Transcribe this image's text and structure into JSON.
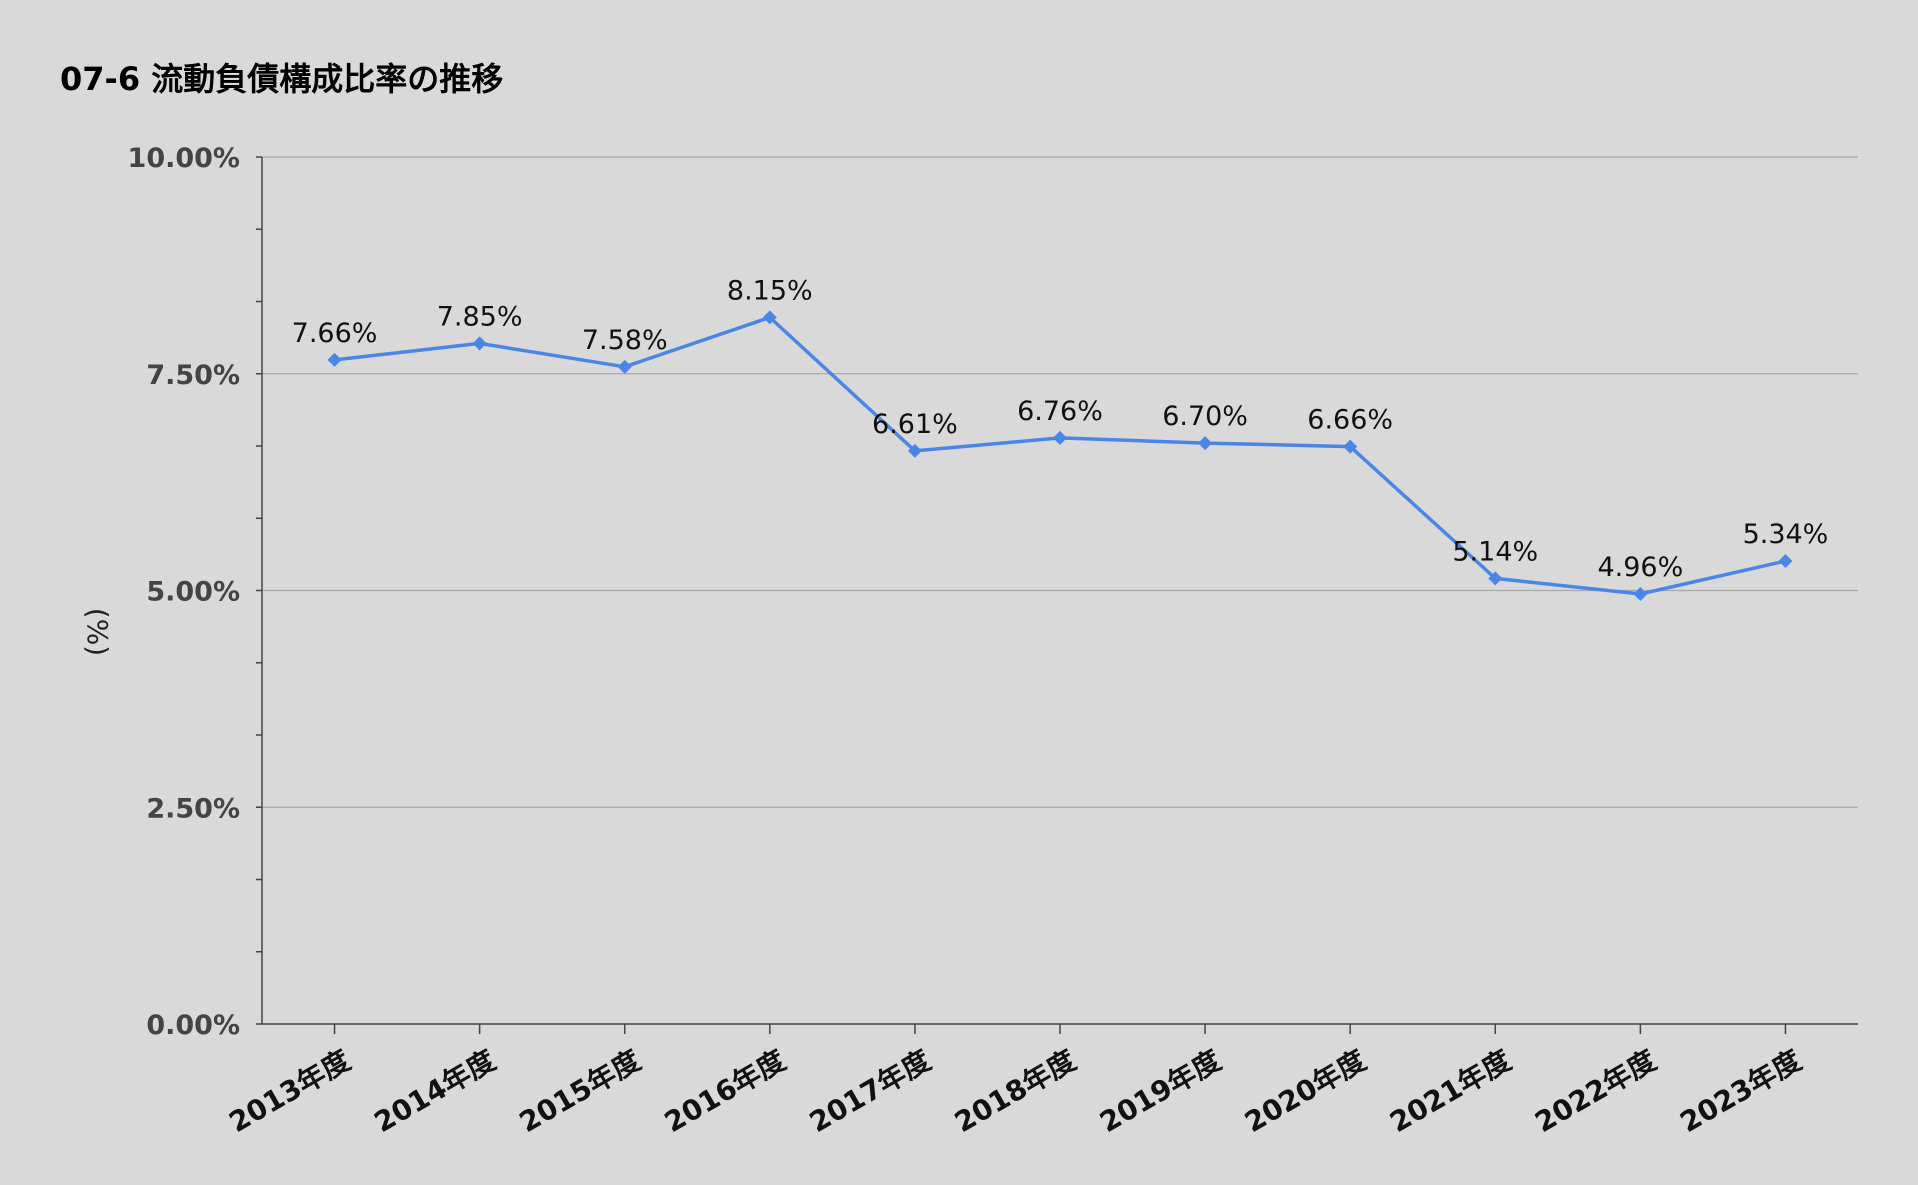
{
  "chart_data": {
    "type": "line",
    "title": "07-6 流動負債構成比率の推移",
    "ylabel": "(%)",
    "xlabel": "",
    "categories": [
      "2013年度",
      "2014年度",
      "2015年度",
      "2016年度",
      "2017年度",
      "2018年度",
      "2019年度",
      "2020年度",
      "2021年度",
      "2022年度",
      "2023年度"
    ],
    "series": [
      {
        "values": [
          7.66,
          7.85,
          7.58,
          8.15,
          6.61,
          6.76,
          6.7,
          6.66,
          5.14,
          4.96,
          5.34
        ],
        "labels": [
          "7.66%",
          "7.85%",
          "7.58%",
          "8.15%",
          "6.61%",
          "6.76%",
          "6.70%",
          "6.66%",
          "5.14%",
          "4.96%",
          "5.34%"
        ]
      }
    ],
    "ylim": [
      0,
      10
    ],
    "yticks": [
      0,
      2.5,
      5,
      7.5,
      10
    ],
    "ytick_labels": [
      "0.00%",
      "2.50%",
      "5.00%",
      "7.50%",
      "10.00%"
    ],
    "grid": true,
    "legend": "none",
    "line_color": "#4a86e8",
    "background": "#d9d9d9"
  }
}
